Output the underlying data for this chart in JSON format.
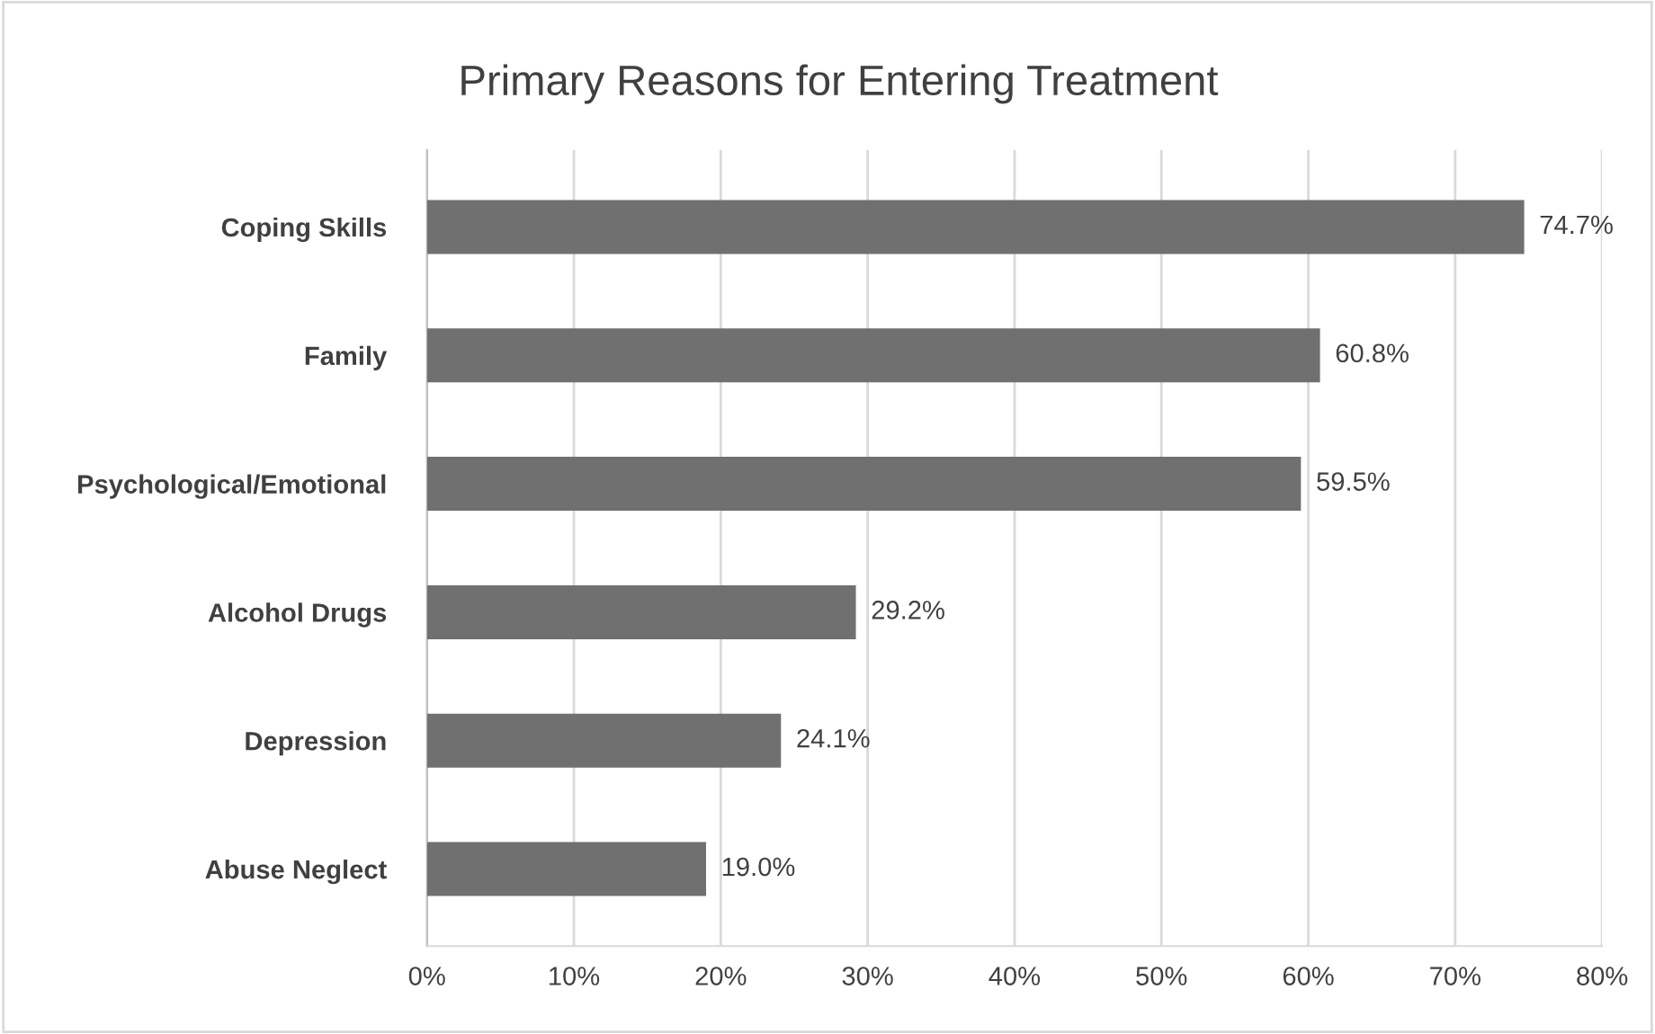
{
  "chart_data": {
    "type": "bar",
    "orientation": "horizontal",
    "title": "Primary Reasons for Entering Treatment",
    "categories": [
      "Coping Skills",
      "Family",
      "Psychological/Emotional",
      "Alcohol Drugs",
      "Depression",
      "Abuse Neglect"
    ],
    "values": [
      74.7,
      60.8,
      59.5,
      29.2,
      24.1,
      19.0
    ],
    "value_labels": [
      "74.7%",
      "60.8%",
      "59.5%",
      "29.2%",
      "24.1%",
      "19.0%"
    ],
    "color": "#707070",
    "xlim": [
      0,
      80
    ],
    "xticks": [
      {
        "value": 0,
        "label": "0%"
      },
      {
        "value": 10,
        "label": "10%"
      },
      {
        "value": 20,
        "label": "20%"
      },
      {
        "value": 30,
        "label": "30%"
      },
      {
        "value": 40,
        "label": "40%"
      },
      {
        "value": 50,
        "label": "50%"
      },
      {
        "value": 60,
        "label": "60%"
      },
      {
        "value": 70,
        "label": "70%"
      },
      {
        "value": 80,
        "label": "80%"
      }
    ],
    "grid": "x"
  }
}
